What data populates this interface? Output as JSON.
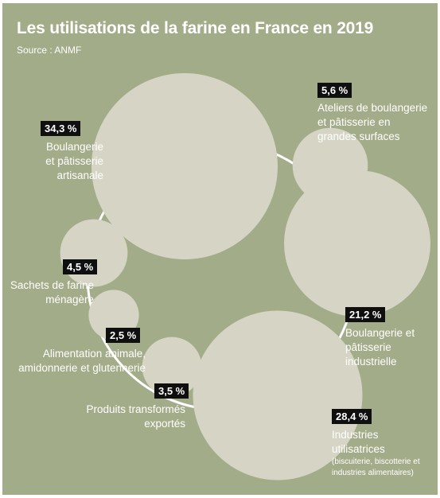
{
  "chart_data": {
    "type": "bubble",
    "title": "Les utilisations de la farine en France en 2019",
    "subtitle": "Source : ANMF",
    "unit": "%",
    "colors": {
      "background": "#a3ac89",
      "bubble": "#d6d5c5",
      "ring": "#ffffff",
      "badge": "#0f0f0f",
      "text": "#ffffff"
    },
    "series": [
      {
        "id": "boulangerie-artisanale",
        "value": 34.3,
        "badge": "34,3 %",
        "lines": [
          "Boulangerie",
          "et pâtisserie",
          "artisanale"
        ],
        "note": ""
      },
      {
        "id": "ateliers-gms",
        "value": 5.6,
        "badge": "5,6 %",
        "lines": [
          "Ateliers de boulangerie",
          "et pâtisserie en",
          "grandes surfaces"
        ],
        "note": ""
      },
      {
        "id": "boulangerie-industrielle",
        "value": 21.2,
        "badge": "21,2 %",
        "lines": [
          "Boulangerie et",
          "pâtisserie",
          "industrielle"
        ],
        "note": ""
      },
      {
        "id": "industries-utilisatrices",
        "value": 28.4,
        "badge": "28,4 %",
        "lines": [
          "Industries",
          "utilisatrices"
        ],
        "note": "(biscuiterie, biscotterie et\nindustries alimentaires)"
      },
      {
        "id": "produits-exportes",
        "value": 3.5,
        "badge": "3,5 %",
        "lines": [
          "Produits transformés",
          "exportés"
        ],
        "note": ""
      },
      {
        "id": "alimentation-animale",
        "value": 2.5,
        "badge": "2,5 %",
        "lines": [
          "Alimentation animale,",
          "amidonnerie et glutennerie"
        ],
        "note": ""
      },
      {
        "id": "sachets-menagere",
        "value": 4.5,
        "badge": "4,5 %",
        "lines": [
          "Sachets de farine",
          "ménagère"
        ],
        "note": ""
      }
    ]
  }
}
